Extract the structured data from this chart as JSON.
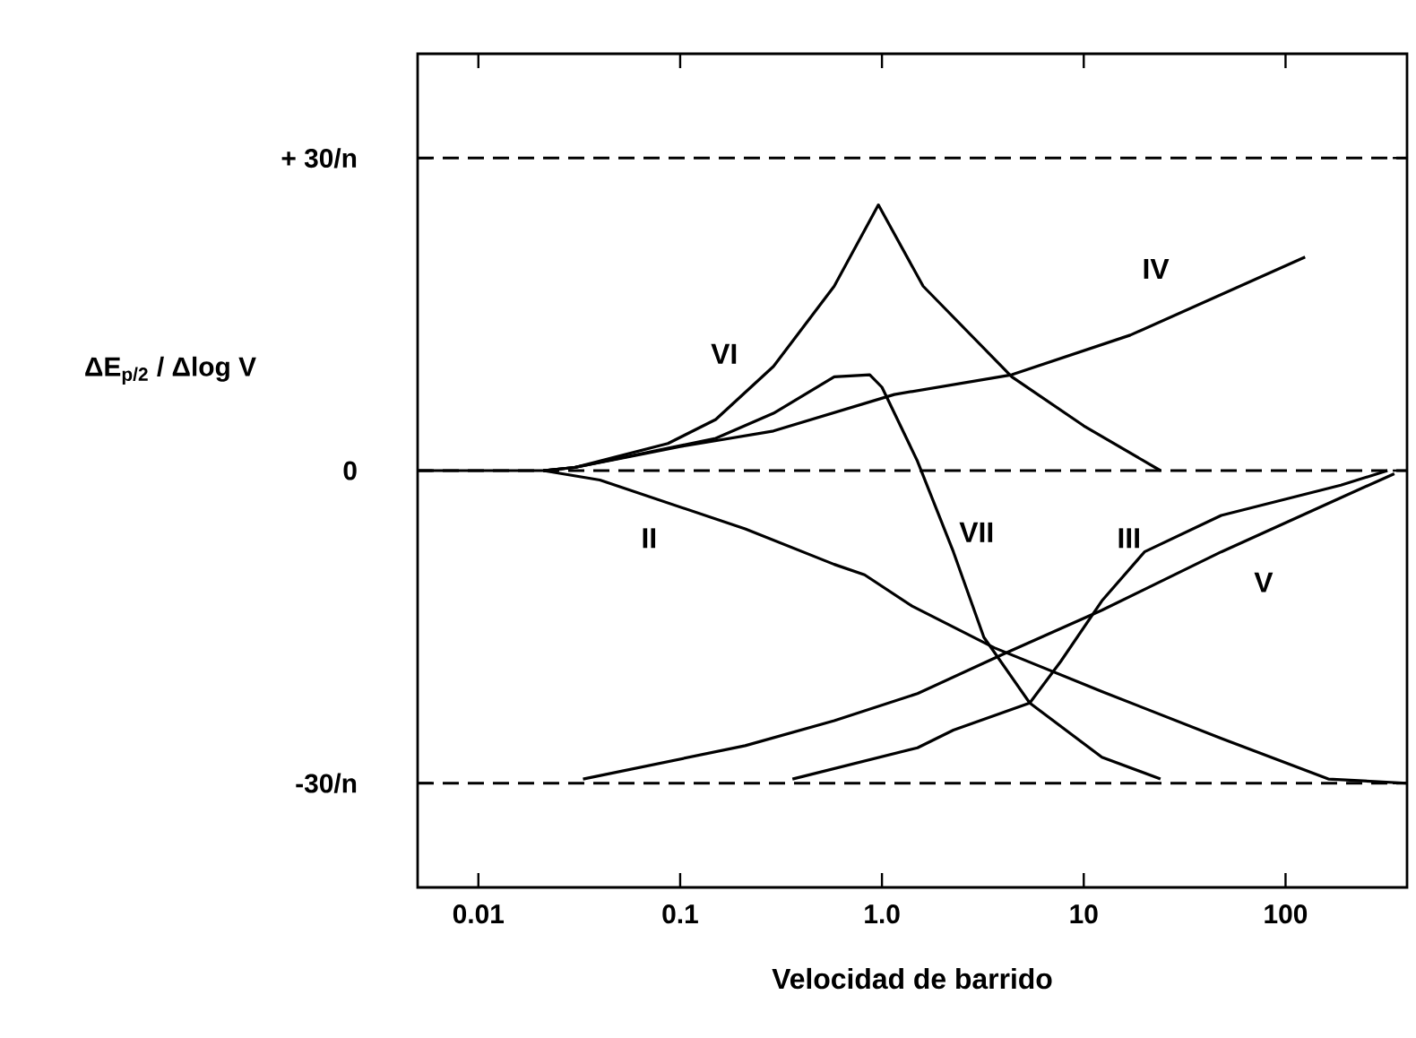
{
  "chart_data": {
    "type": "line",
    "xlabel": "Velocidad de barrido",
    "ylabel": "ΔE$_{p/2}$ / Δlog V",
    "log": "x",
    "grid": false,
    "legend": false,
    "marker": "none",
    "line_style": "solid",
    "xlim": [
      0.005,
      400
    ],
    "ylim": [
      -40,
      40
    ],
    "xticks": [
      0.01,
      0.1,
      {
        "value": 1,
        "label": "1.0"
      },
      10,
      100
    ],
    "yticks": [
      {
        "value": -30,
        "label": "-30/n"
      },
      0,
      {
        "value": 30,
        "label": "+ 30/n"
      }
    ],
    "ref_lines": [
      {
        "axis": "y",
        "value": 30,
        "line_style": "dashed",
        "color": "#000000"
      },
      {
        "axis": "y",
        "value": 0,
        "line_style": "dashed",
        "color": "#000000"
      },
      {
        "axis": "y",
        "value": -30,
        "line_style": "dashed",
        "color": "#000000"
      }
    ],
    "series": [
      {
        "name": "II",
        "color": "#000000",
        "x": [
          0.005,
          0.021,
          0.04,
          0.21,
          0.58,
          0.82,
          1.41,
          3.6,
          12.3,
          48,
          163,
          400
        ],
        "values": [
          0,
          0,
          -0.9,
          -5.6,
          -9,
          -10,
          -13,
          -17,
          -21.2,
          -25.7,
          -29.6,
          -30
        ]
      },
      {
        "name": "VI",
        "color": "#000000",
        "x": [
          0.021,
          0.03,
          0.087,
          0.15,
          0.29,
          0.58,
          0.96,
          1.6,
          4.4,
          10,
          24
        ],
        "values": [
          0,
          0.3,
          2.6,
          4.9,
          10,
          17.7,
          25.5,
          17.7,
          9,
          4.3,
          0
        ]
      },
      {
        "name": "VII",
        "color": "#000000",
        "x": [
          0.021,
          0.03,
          0.15,
          0.29,
          0.58,
          0.87,
          1.0,
          1.5,
          2.26,
          3.2,
          5.4,
          12.3,
          24
        ],
        "values": [
          0,
          0.3,
          3.1,
          5.5,
          9,
          9.2,
          8,
          0.9,
          -7.8,
          -16,
          -22.3,
          -27.5,
          -29.6
        ]
      },
      {
        "name": "IV",
        "color": "#000000",
        "x": [
          0.021,
          0.03,
          0.1,
          0.29,
          1.15,
          4.4,
          17,
          125
        ],
        "values": [
          0,
          0.3,
          2.3,
          3.8,
          7.3,
          9.2,
          13,
          20.5
        ]
      },
      {
        "name": "V",
        "color": "#000000",
        "x": [
          0.033,
          0.21,
          0.58,
          1.5,
          3.9,
          12.3,
          48,
          188,
          346
        ],
        "values": [
          -29.6,
          -26.4,
          -24,
          -21.4,
          -17.7,
          -13.4,
          -7.8,
          -2.6,
          -0.3
        ]
      },
      {
        "name": "III",
        "color": "#000000",
        "x": [
          0.36,
          1.5,
          2.26,
          5.4,
          7.7,
          12.3,
          20,
          48,
          188,
          320
        ],
        "values": [
          -29.6,
          -26.6,
          -24.9,
          -22.3,
          -18.3,
          -12.5,
          -7.8,
          -4.3,
          -1.4,
          0
        ]
      }
    ]
  }
}
